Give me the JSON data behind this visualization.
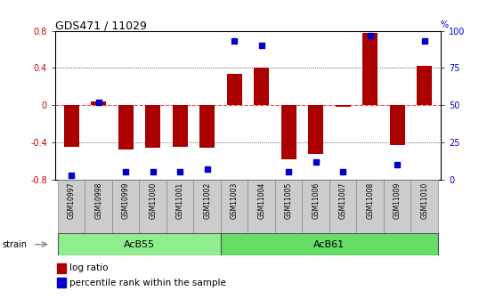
{
  "title": "GDS471 / 11029",
  "samples": [
    "GSM10997",
    "GSM10998",
    "GSM10999",
    "GSM11000",
    "GSM11001",
    "GSM11002",
    "GSM11003",
    "GSM11004",
    "GSM11005",
    "GSM11006",
    "GSM11007",
    "GSM11008",
    "GSM11009",
    "GSM11010"
  ],
  "log_ratio": [
    -0.45,
    0.04,
    -0.48,
    -0.46,
    -0.45,
    -0.46,
    0.34,
    0.4,
    -0.58,
    -0.52,
    -0.02,
    0.78,
    -0.43,
    0.42
  ],
  "percentile_rank": [
    3,
    52,
    5,
    5,
    5,
    7,
    93,
    90,
    5,
    12,
    5,
    97,
    10,
    93
  ],
  "groups": [
    {
      "label": "AcB55",
      "start": 0,
      "end": 6,
      "color": "#90EE90"
    },
    {
      "label": "AcB61",
      "start": 6,
      "end": 14,
      "color": "#66DD66"
    }
  ],
  "bar_color": "#AA0000",
  "square_color": "#0000CC",
  "zero_line_color": "#FF4444",
  "grid_color": "#000000",
  "bg_color": "#FFFFFF",
  "plot_bg": "#FFFFFF",
  "ylim_left": [
    -0.8,
    0.8
  ],
  "ylim_right": [
    0,
    100
  ],
  "yticks_left": [
    -0.8,
    -0.4,
    0.0,
    0.4,
    0.8
  ],
  "yticks_right": [
    0,
    25,
    50,
    75,
    100
  ],
  "ylabel_right": "%",
  "strain_label": "strain",
  "legend_log": "log ratio",
  "legend_pct": "percentile rank within the sample"
}
